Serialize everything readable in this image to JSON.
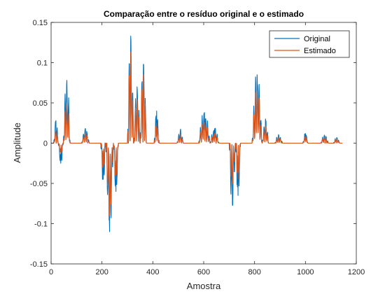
{
  "chart_data": {
    "type": "line",
    "title": "Comparação entre o resíduo original e o estimado",
    "xlabel": "Amostra",
    "ylabel": "Amplitude",
    "xlim": [
      0,
      1200
    ],
    "ylim": [
      -0.15,
      0.15
    ],
    "xticks": [
      0,
      200,
      400,
      600,
      800,
      1000,
      1200
    ],
    "yticks": [
      -0.15,
      -0.1,
      -0.05,
      0,
      0.05,
      0.1,
      0.15
    ],
    "legend_position": "top-right",
    "grid": false,
    "series": [
      {
        "name": "Original",
        "color": "#0072BD",
        "events": [
          {
            "start": 10,
            "end": 28,
            "amp": 0.028
          },
          {
            "start": 28,
            "end": 48,
            "amp": -0.025
          },
          {
            "start": 48,
            "end": 75,
            "amp": 0.078
          },
          {
            "start": 120,
            "end": 150,
            "amp": 0.018
          },
          {
            "start": 195,
            "end": 215,
            "amp": -0.045
          },
          {
            "start": 215,
            "end": 245,
            "amp": -0.11
          },
          {
            "start": 245,
            "end": 265,
            "amp": -0.06
          },
          {
            "start": 300,
            "end": 325,
            "amp": 0.133
          },
          {
            "start": 325,
            "end": 350,
            "amp": 0.07
          },
          {
            "start": 350,
            "end": 375,
            "amp": 0.098
          },
          {
            "start": 405,
            "end": 425,
            "amp": 0.04
          },
          {
            "start": 495,
            "end": 520,
            "amp": 0.016
          },
          {
            "start": 580,
            "end": 625,
            "amp": 0.038
          },
          {
            "start": 625,
            "end": 660,
            "amp": 0.018
          },
          {
            "start": 700,
            "end": 725,
            "amp": -0.077
          },
          {
            "start": 725,
            "end": 745,
            "amp": -0.065
          },
          {
            "start": 790,
            "end": 830,
            "amp": 0.085
          },
          {
            "start": 830,
            "end": 855,
            "amp": 0.03
          },
          {
            "start": 880,
            "end": 910,
            "amp": 0.01
          },
          {
            "start": 990,
            "end": 1010,
            "amp": 0.012
          },
          {
            "start": 1060,
            "end": 1090,
            "amp": 0.01
          },
          {
            "start": 1110,
            "end": 1135,
            "amp": 0.007
          }
        ]
      },
      {
        "name": "Estimado",
        "color": "#D95319",
        "events": [
          {
            "start": 10,
            "end": 28,
            "amp": 0.015
          },
          {
            "start": 28,
            "end": 48,
            "amp": -0.012
          },
          {
            "start": 48,
            "end": 75,
            "amp": 0.05
          },
          {
            "start": 120,
            "end": 150,
            "amp": 0.012
          },
          {
            "start": 195,
            "end": 215,
            "amp": -0.03
          },
          {
            "start": 215,
            "end": 245,
            "amp": -0.09
          },
          {
            "start": 245,
            "end": 265,
            "amp": -0.045
          },
          {
            "start": 300,
            "end": 325,
            "amp": 0.113
          },
          {
            "start": 325,
            "end": 350,
            "amp": 0.055
          },
          {
            "start": 350,
            "end": 375,
            "amp": 0.085
          },
          {
            "start": 405,
            "end": 425,
            "amp": 0.025
          },
          {
            "start": 495,
            "end": 520,
            "amp": 0.01
          },
          {
            "start": 580,
            "end": 625,
            "amp": 0.026
          },
          {
            "start": 625,
            "end": 660,
            "amp": 0.012
          },
          {
            "start": 700,
            "end": 725,
            "amp": -0.05
          },
          {
            "start": 725,
            "end": 745,
            "amp": -0.045
          },
          {
            "start": 790,
            "end": 830,
            "amp": 0.065
          },
          {
            "start": 830,
            "end": 855,
            "amp": 0.022
          },
          {
            "start": 880,
            "end": 910,
            "amp": 0.007
          },
          {
            "start": 990,
            "end": 1010,
            "amp": 0.008
          },
          {
            "start": 1060,
            "end": 1090,
            "amp": 0.007
          },
          {
            "start": 1110,
            "end": 1135,
            "amp": 0.005
          }
        ]
      }
    ],
    "x_end": 1145
  }
}
